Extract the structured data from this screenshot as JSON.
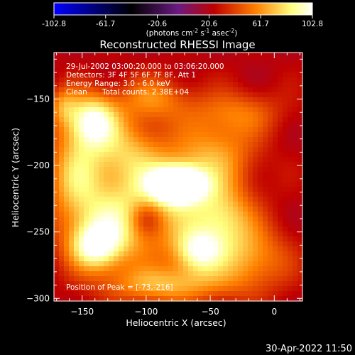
{
  "colorbar": {
    "tick_labels": [
      "-102.8",
      "-61.7",
      "-20.6",
      "20.6",
      "61.7",
      "102.8"
    ],
    "range": [
      -102.8,
      102.8
    ],
    "unit_main": "(photons cm",
    "unit_sup1": "-2",
    "unit_mid": " s",
    "unit_sup2": "-1",
    "unit_mid2": " asec",
    "unit_sup3": "-2",
    "unit_end": ")"
  },
  "chart_data": {
    "type": "heatmap",
    "title": "Reconstructed RHESSI Image",
    "xlabel": "Heliocentric X (arcsec)",
    "ylabel": "Heliocentric Y (arcsec)",
    "xlim": [
      -172,
      22
    ],
    "ylim": [
      -302,
      -115
    ],
    "x_ticks": [
      -150,
      -100,
      -50,
      0
    ],
    "y_ticks": [
      -150,
      -200,
      -250,
      -300
    ],
    "x_tick_labels": [
      "−150",
      "−100",
      "−50",
      "0"
    ],
    "y_tick_labels": [
      "−150",
      "−200",
      "−250",
      "−300"
    ],
    "colormap": [
      "#0000ff",
      "#000000",
      "#6a1a80",
      "#c00000",
      "#ff8000",
      "#ffff80",
      "#ffffff"
    ],
    "annotations": {
      "line1": "29-Jul-2002 03:00:20.000 to 03:06:20.000",
      "line2": "Detectors: 3F 4F 5F 6F 7F 8F, Att 1",
      "line3": "Energy Range: 3.0 - 6.0 keV",
      "line4_a": "Clean",
      "line4_b": "Total counts: 2.38E+04",
      "peak": "Position of Peak = [-73,-216]"
    },
    "sources": [
      {
        "x": -75,
        "y": -214,
        "sx": 14,
        "sy": 9,
        "amp": 102
      },
      {
        "x": -78,
        "y": -223,
        "sx": 32,
        "sy": 24,
        "amp": 45
      },
      {
        "x": -142,
        "y": -166,
        "sx": 14,
        "sy": 14,
        "amp": 70
      },
      {
        "x": -155,
        "y": -205,
        "sx": 16,
        "sy": 26,
        "amp": 48
      },
      {
        "x": -115,
        "y": -190,
        "sx": 20,
        "sy": 18,
        "amp": 40
      },
      {
        "x": -125,
        "y": -245,
        "sx": 26,
        "sy": 22,
        "amp": 52
      },
      {
        "x": -140,
        "y": -262,
        "sx": 14,
        "sy": 12,
        "amp": 58
      },
      {
        "x": -60,
        "y": -265,
        "sx": 14,
        "sy": 12,
        "amp": 62
      },
      {
        "x": -20,
        "y": -270,
        "sx": 22,
        "sy": 18,
        "amp": 42
      },
      {
        "x": -85,
        "y": -290,
        "sx": 32,
        "sy": 10,
        "amp": 45
      },
      {
        "x": -40,
        "y": -240,
        "sx": 16,
        "sy": 16,
        "amp": 40
      },
      {
        "x": -45,
        "y": -190,
        "sx": 22,
        "sy": 18,
        "amp": 34
      },
      {
        "x": -30,
        "y": -160,
        "sx": 26,
        "sy": 12,
        "amp": 28
      },
      {
        "x": -95,
        "y": -150,
        "sx": 20,
        "sy": 12,
        "amp": 34
      },
      {
        "x": -165,
        "y": -155,
        "sx": 8,
        "sy": 10,
        "amp": 30
      },
      {
        "x": -100,
        "y": -240,
        "sx": 10,
        "sy": 10,
        "amp": -35
      }
    ]
  },
  "footer": {
    "timestamp": "30-Apr-2022 11:50"
  }
}
